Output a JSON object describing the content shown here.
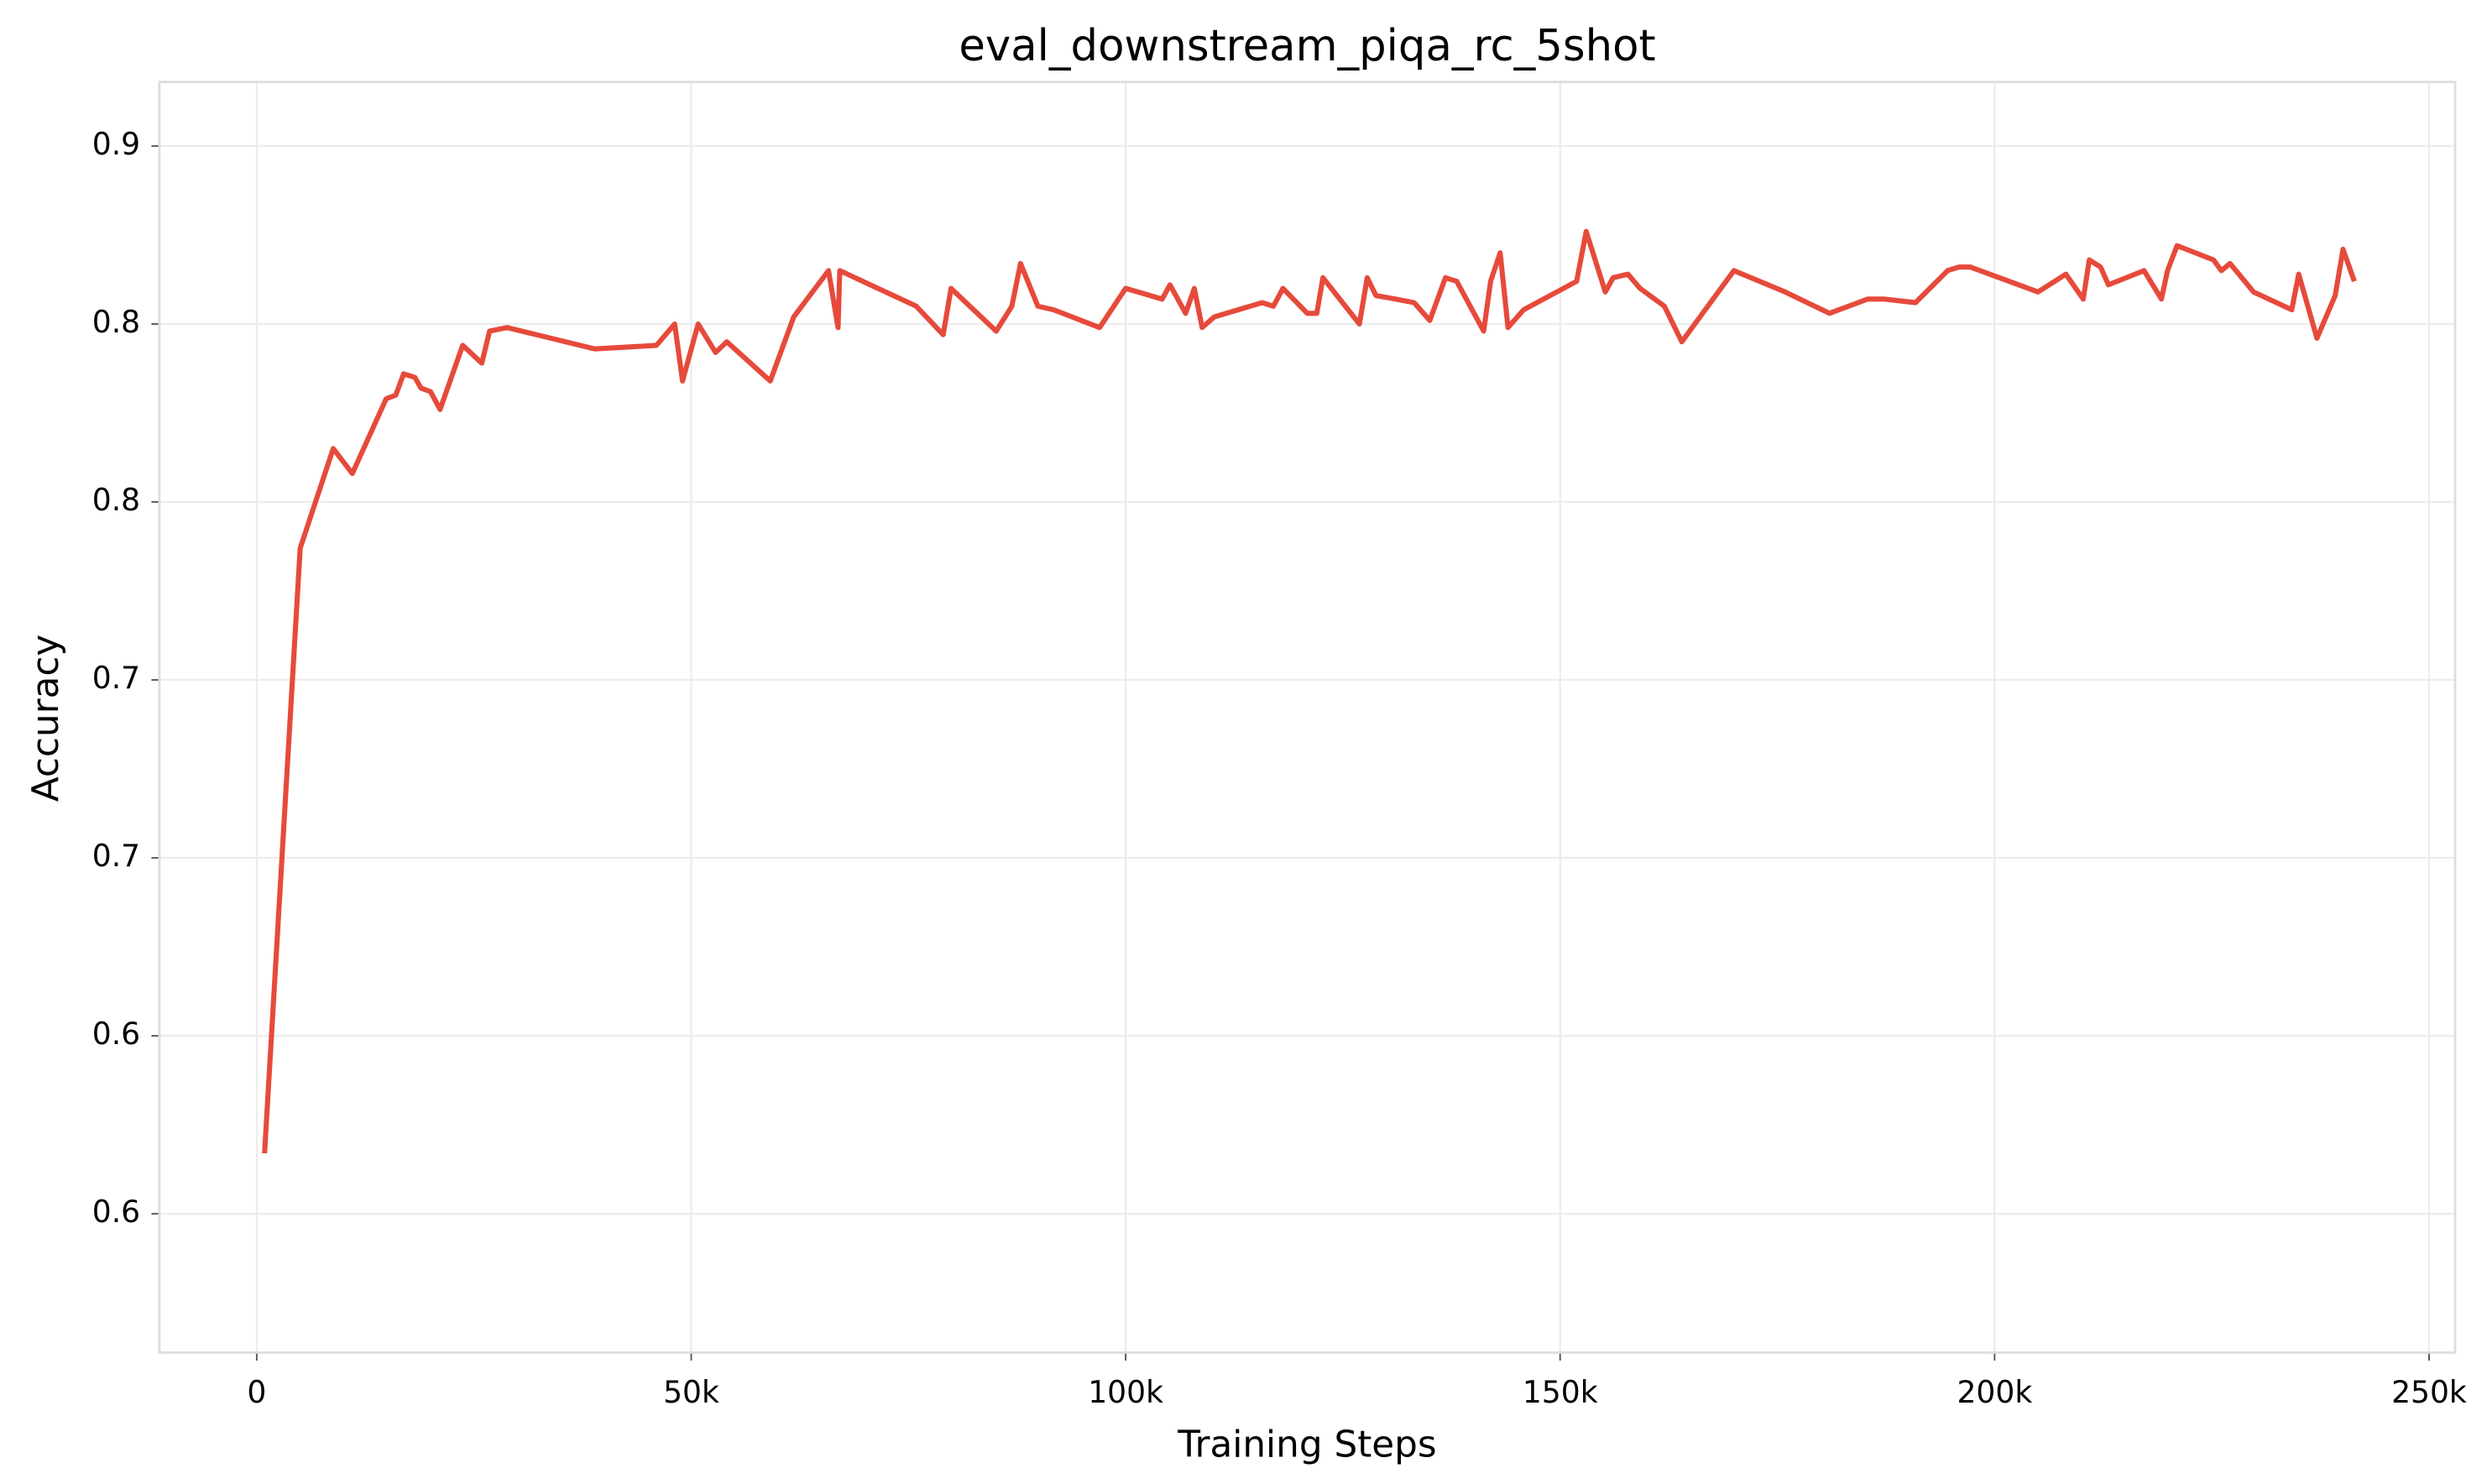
{
  "chart_data": {
    "type": "line",
    "title": "eval_downstream_piqa_rc_5shot",
    "x_label": "Training Steps",
    "y_label": "Accuracy",
    "grid": true,
    "xlim": [
      -11200,
      253000
    ],
    "ylim": [
      0.511,
      0.868
    ],
    "xticks": [
      0,
      {
        "value": 50000,
        "label": "50k"
      },
      {
        "value": 100000,
        "label": "100k"
      },
      {
        "value": 150000,
        "label": "150k"
      },
      {
        "value": 200000,
        "label": "200k"
      },
      {
        "value": 250000,
        "label": "250k"
      }
    ],
    "yticks": [
      {
        "value": 0.55,
        "label": "0.6"
      },
      0.6,
      {
        "value": 0.65,
        "label": "0.7"
      },
      0.7,
      {
        "value": 0.75,
        "label": "0.8"
      },
      0.8,
      {
        "value": 0.85,
        "label": "0.9"
      }
    ],
    "x": [
      900,
      5000,
      8800,
      11000,
      14900,
      16000,
      16900,
      18200,
      18900,
      20000,
      21100,
      23700,
      25900,
      26800,
      28800,
      38900,
      46000,
      48100,
      49000,
      50800,
      52800,
      54100,
      59100,
      61800,
      65800,
      66900,
      67100,
      75900,
      79000,
      79900,
      85100,
      86900,
      87900,
      89900,
      91700,
      97000,
      100000,
      104200,
      105100,
      106900,
      107900,
      108800,
      110200,
      115700,
      117000,
      118100,
      120900,
      122000,
      122700,
      126900,
      127800,
      128800,
      131100,
      133200,
      135000,
      136800,
      138100,
      141200,
      142000,
      143100,
      144000,
      145800,
      151900,
      153000,
      155200,
      156100,
      157800,
      159200,
      162000,
      164000,
      170000,
      175900,
      181000,
      185400,
      187300,
      190900,
      194600,
      195900,
      197200,
      205000,
      208200,
      210200,
      210900,
      212200,
      213100,
      217200,
      219200,
      219900,
      221000,
      225200,
      226100,
      227100,
      229800,
      234200,
      235000,
      237100,
      239200,
      240100,
      241400
    ],
    "series": [
      {
        "name": "piqa",
        "color": "#e64a3b",
        "values": [
          0.567,
          0.737,
          0.765,
          0.758,
          0.779,
          0.78,
          0.786,
          0.785,
          0.782,
          0.781,
          0.776,
          0.794,
          0.789,
          0.798,
          0.799,
          0.793,
          0.794,
          0.8,
          0.784,
          0.8,
          0.792,
          0.795,
          0.784,
          0.802,
          0.815,
          0.799,
          0.815,
          0.805,
          0.797,
          0.81,
          0.798,
          0.805,
          0.817,
          0.805,
          0.804,
          0.799,
          0.81,
          0.807,
          0.811,
          0.803,
          0.81,
          0.799,
          0.802,
          0.806,
          0.805,
          0.81,
          0.803,
          0.803,
          0.813,
          0.8,
          0.813,
          0.808,
          0.807,
          0.806,
          0.801,
          0.813,
          0.812,
          0.798,
          0.812,
          0.82,
          0.799,
          0.804,
          0.812,
          0.826,
          0.809,
          0.813,
          0.814,
          0.81,
          0.805,
          0.795,
          0.815,
          0.809,
          0.803,
          0.807,
          0.807,
          0.806,
          0.815,
          0.816,
          0.816,
          0.809,
          0.814,
          0.807,
          0.818,
          0.816,
          0.811,
          0.815,
          0.807,
          0.815,
          0.822,
          0.818,
          0.815,
          0.817,
          0.809,
          0.804,
          0.814,
          0.796,
          0.808,
          0.821,
          0.812
        ]
      }
    ]
  }
}
